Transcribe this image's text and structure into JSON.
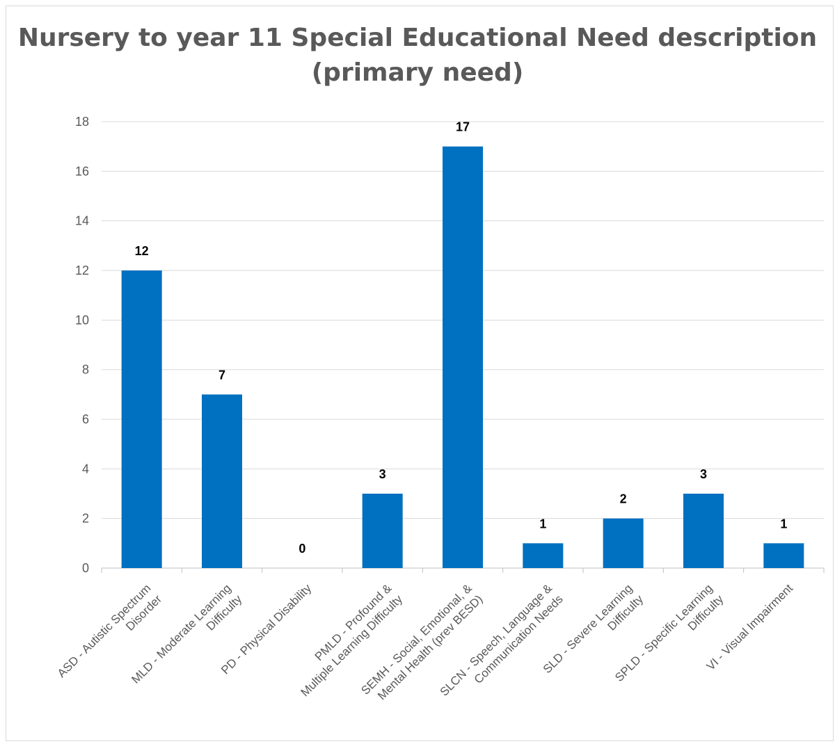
{
  "chart_data": {
    "type": "bar",
    "title_lines": [
      "Nursery to year 11 Special Educational Need description",
      "(primary need)"
    ],
    "categories": [
      [
        "ASD - Autistic Spectrum",
        "Disorder"
      ],
      [
        "MLD - Moderate Learning",
        "Difficulty"
      ],
      [
        "PD - Physical Disability"
      ],
      [
        "PMLD - Profound &",
        "Multiple Learning Difficulty"
      ],
      [
        "SEMH - Social, Emotional, &",
        "Mental Health (prev BESD)"
      ],
      [
        "SLCN - Speech, Language &",
        "Communication Needs"
      ],
      [
        "SLD - Severe Learning",
        "Difficulty"
      ],
      [
        "SPLD - Specific Learning",
        "Difficulty"
      ],
      [
        "VI - Visual Impairment"
      ]
    ],
    "values": [
      12,
      7,
      0,
      3,
      17,
      1,
      2,
      3,
      1
    ],
    "ylim": [
      0,
      18
    ],
    "yticks": [
      0,
      2,
      4,
      6,
      8,
      10,
      12,
      14,
      16,
      18
    ],
    "grid": true,
    "legend": "none",
    "bar_color": "#0070c0",
    "data_labels": true
  }
}
